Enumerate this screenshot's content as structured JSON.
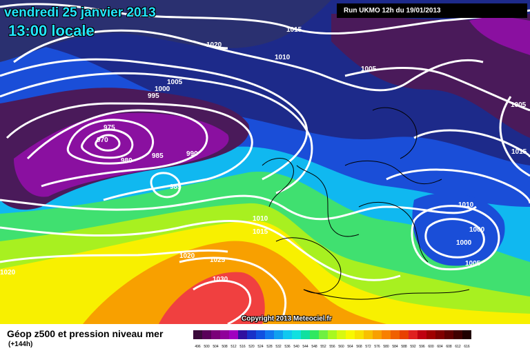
{
  "header": {
    "date": "vendredi 25 janvier 2013",
    "time": "13:00 locale",
    "run": "Run UKMO 12h du 19/01/2013"
  },
  "copyright": "Copyright 2013 Meteociel.fr",
  "legend": {
    "title": "Géop z500 et pression niveau mer",
    "subtitle": "(+144h)",
    "scale_labels": [
      "496",
      "500",
      "504",
      "508",
      "512",
      "516",
      "520",
      "524",
      "528",
      "532",
      "536",
      "540",
      "544",
      "548",
      "552",
      "556",
      "560",
      "564",
      "568",
      "572",
      "576",
      "580",
      "584",
      "588",
      "592",
      "596",
      "600",
      "604",
      "608",
      "612",
      "616"
    ],
    "scale_colors": [
      "#3a0a3a",
      "#5a005a",
      "#7a0078",
      "#90009a",
      "#a000c0",
      "#3010a0",
      "#1830c8",
      "#1050e0",
      "#1078f0",
      "#10a0f0",
      "#10c8f0",
      "#10e0e0",
      "#10e0a0",
      "#30e860",
      "#70f040",
      "#a8f820",
      "#d8f810",
      "#f8f800",
      "#f8e000",
      "#f8c000",
      "#f8a000",
      "#f88000",
      "#f06000",
      "#e84000",
      "#e02020",
      "#c00010",
      "#a00000",
      "#800000",
      "#600000",
      "#400000",
      "#200000"
    ]
  },
  "isobar_labels": [
    "1015",
    "1020",
    "1010",
    "1005",
    "1000",
    "995",
    "975",
    "970",
    "980",
    "985",
    "990",
    "985",
    "1005",
    "1005",
    "1015",
    "1010",
    "1010",
    "1015",
    "1000",
    "1000",
    "1005",
    "1020",
    "1025",
    "1030",
    "1020"
  ],
  "colors": {
    "deep_purple": "#4a1a5a",
    "magenta": "#8a10a0",
    "navy": "#2a3070",
    "blue": "#1a4ed8",
    "cyan": "#10b8f0",
    "green": "#40e070",
    "yellow": "#f8f000",
    "orange": "#f89000",
    "red": "#f04040"
  }
}
